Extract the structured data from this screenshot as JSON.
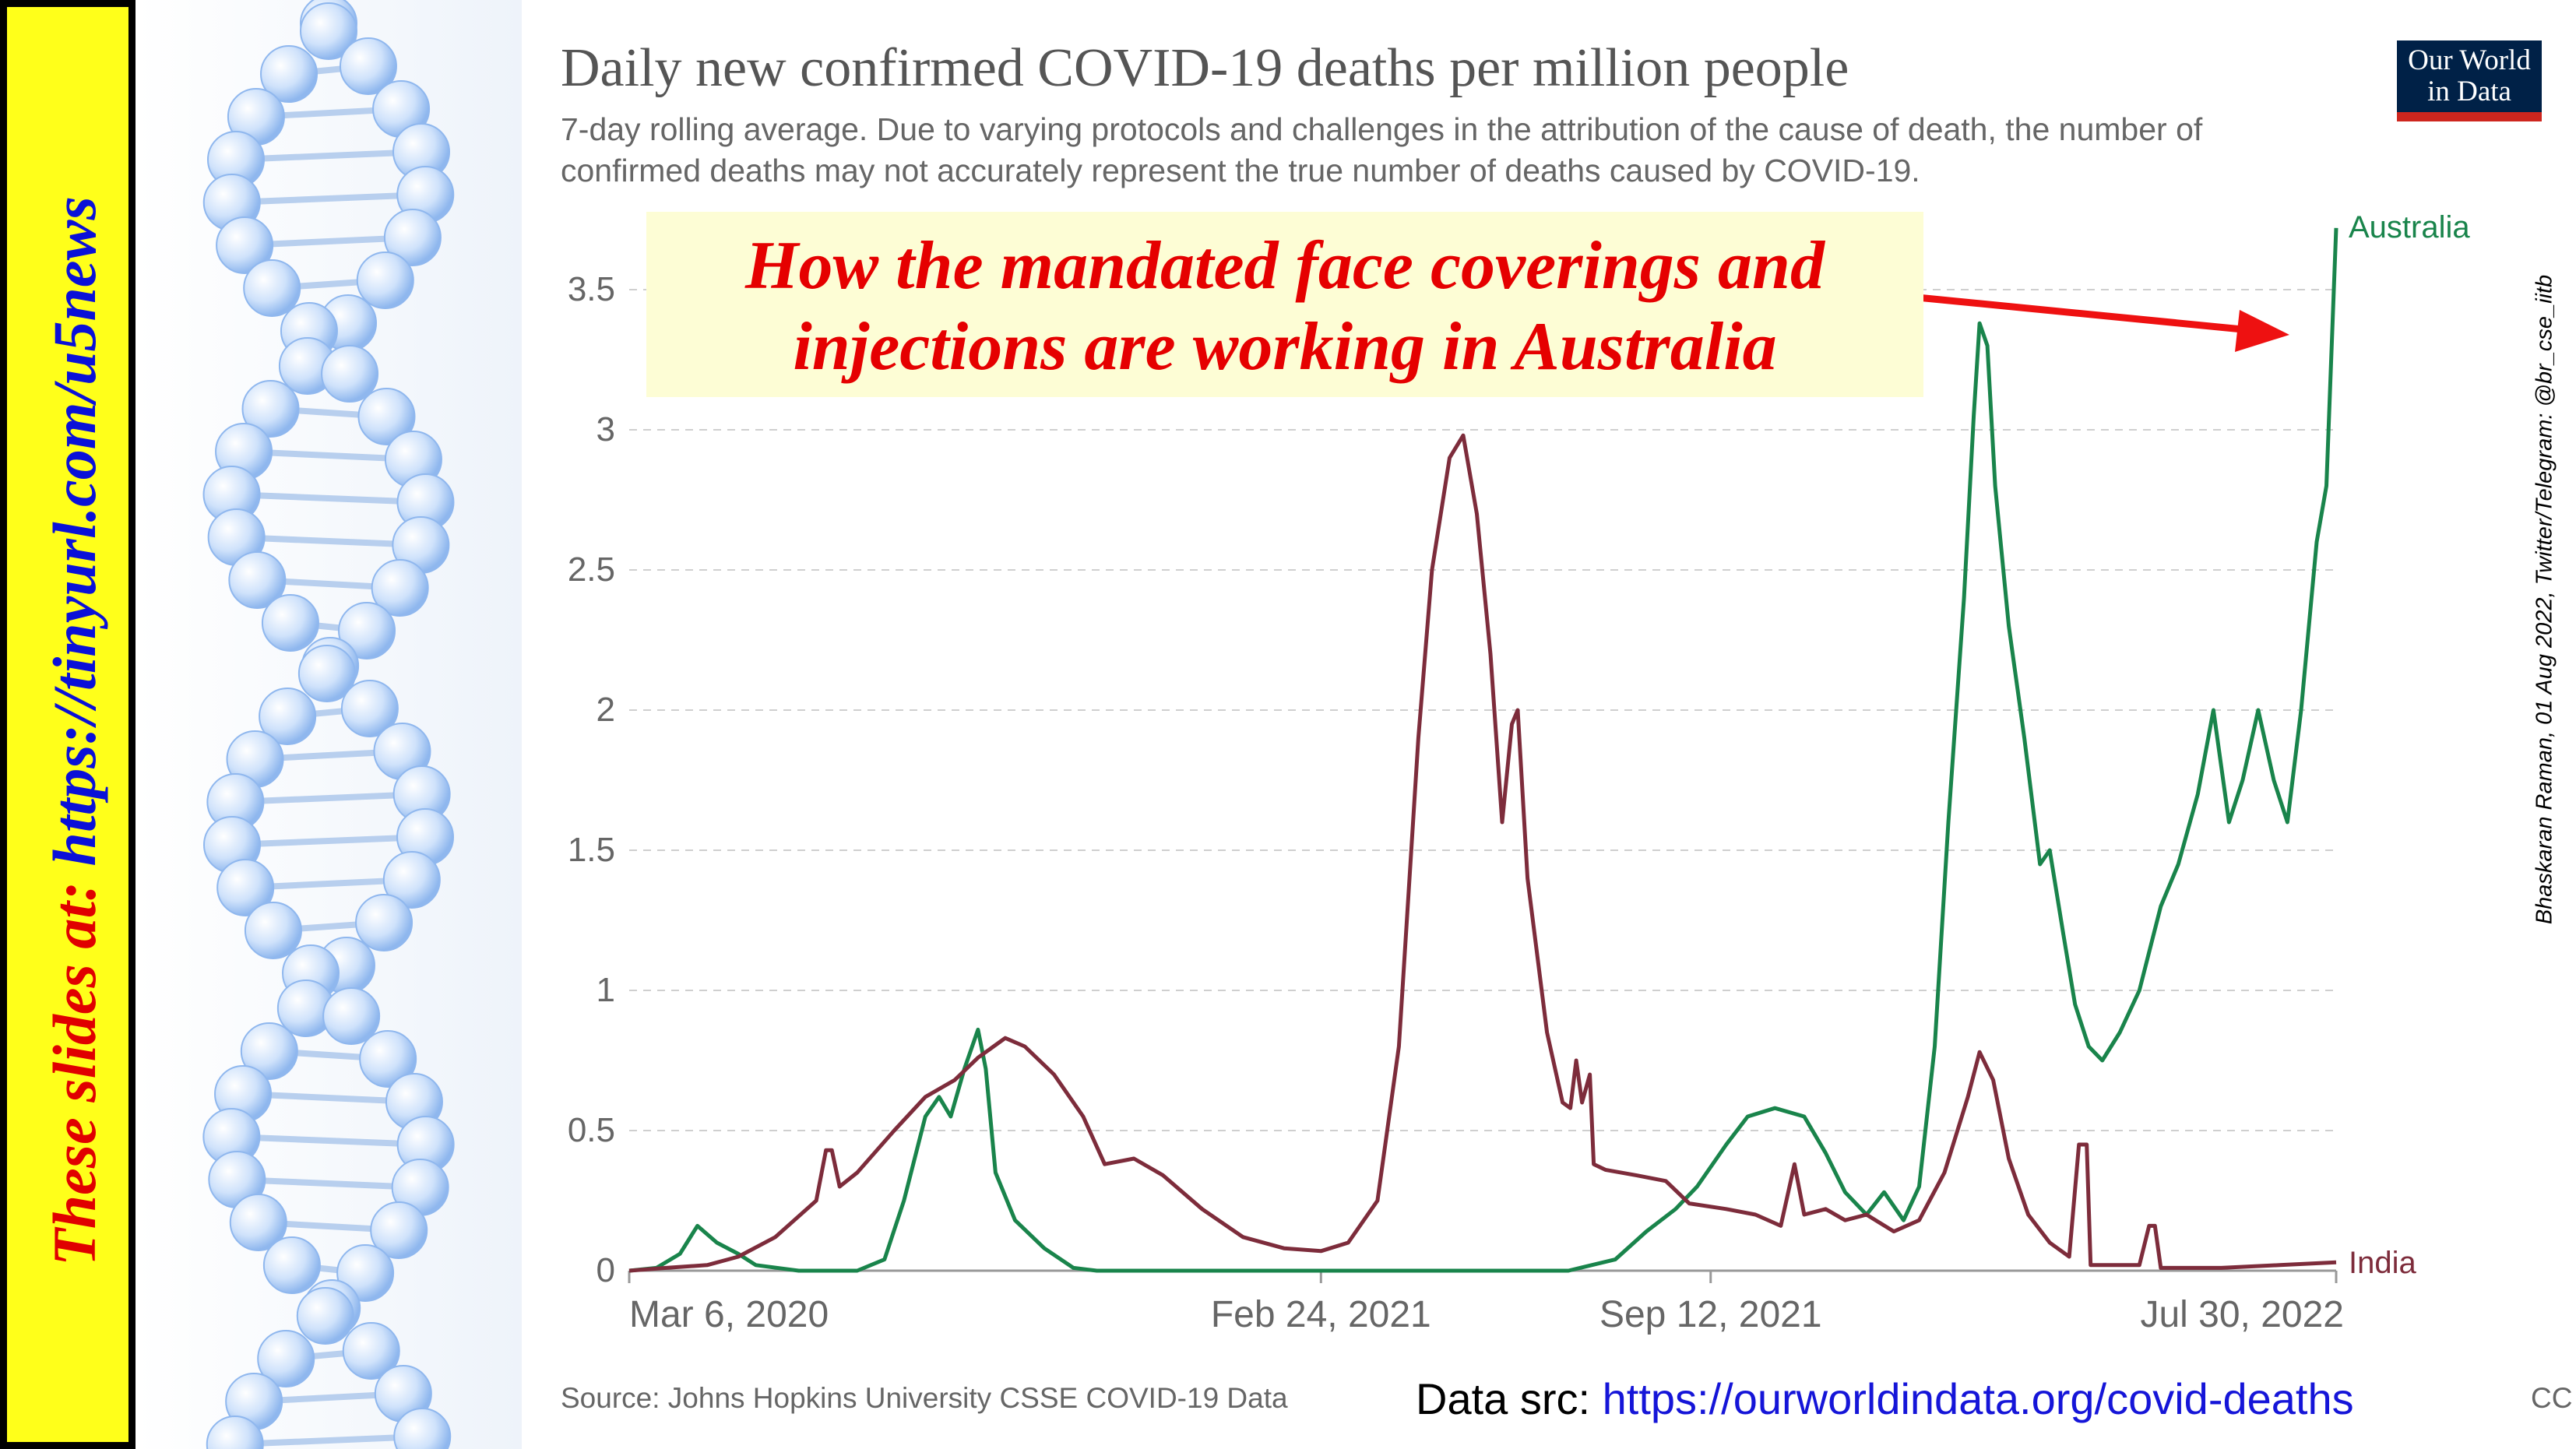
{
  "banner": {
    "prefix": "These slides at: ",
    "url": "https://tinyurl.com/u5news"
  },
  "logo": {
    "line1": "Our World",
    "line2": "in Data"
  },
  "callout": {
    "line1": "How the mandated face coverings and",
    "line2": "injections are working in Australia"
  },
  "side_credit": "Bhaskaran Raman, 01 Aug 2022, Twitter/Telegram: @br_cse_iitb",
  "data_src": {
    "label": "Data src: ",
    "url": "https://ourworldindata.org/covid-deaths"
  },
  "colors": {
    "australia": "#19844b",
    "india": "#7d2c3b",
    "callout_text": "#e50000",
    "banner_bg": "#ffff1a",
    "logo_bg": "#002147",
    "logo_accent": "#ce261e"
  },
  "chart_data": {
    "type": "line",
    "title": "Daily new confirmed COVID-19 deaths per million people",
    "subtitle_line1": "7-day rolling average. Due to varying protocols and challenges in the attribution of the cause of death, the number of",
    "subtitle_line2": "confirmed deaths may not accurately represent the true number of deaths caused by COVID-19.",
    "source": "Source: Johns Hopkins University CSSE COVID-19 Data",
    "license": "CC BY",
    "x_ticks": [
      "Mar 6, 2020",
      "Feb 24, 2021",
      "Sep 12, 2021",
      "Jul 30, 2022"
    ],
    "y_ticks": [
      "0",
      "0.5",
      "1",
      "1.5",
      "2",
      "2.5",
      "3",
      "3.5"
    ],
    "ylim": [
      0,
      3.7
    ],
    "xlim": [
      "2020-03-06",
      "2022-07-30"
    ],
    "grid": "horizontal dashed",
    "series": [
      {
        "name": "Australia",
        "color": "#19844b",
        "points": [
          [
            "2020-03-06",
            0
          ],
          [
            "2020-03-20",
            0.01
          ],
          [
            "2020-04-01",
            0.06
          ],
          [
            "2020-04-10",
            0.16
          ],
          [
            "2020-04-20",
            0.1
          ],
          [
            "2020-05-01",
            0.06
          ],
          [
            "2020-05-10",
            0.02
          ],
          [
            "2020-06-01",
            0
          ],
          [
            "2020-07-01",
            0
          ],
          [
            "2020-07-15",
            0.04
          ],
          [
            "2020-07-25",
            0.25
          ],
          [
            "2020-08-05",
            0.55
          ],
          [
            "2020-08-12",
            0.62
          ],
          [
            "2020-08-18",
            0.55
          ],
          [
            "2020-08-25",
            0.72
          ],
          [
            "2020-09-01",
            0.86
          ],
          [
            "2020-09-05",
            0.72
          ],
          [
            "2020-09-10",
            0.35
          ],
          [
            "2020-09-20",
            0.18
          ],
          [
            "2020-10-05",
            0.08
          ],
          [
            "2020-10-20",
            0.01
          ],
          [
            "2020-11-01",
            0
          ],
          [
            "2021-01-01",
            0
          ],
          [
            "2021-05-01",
            0
          ],
          [
            "2021-07-01",
            0
          ],
          [
            "2021-07-25",
            0.04
          ],
          [
            "2021-08-10",
            0.14
          ],
          [
            "2021-08-25",
            0.22
          ],
          [
            "2021-09-05",
            0.3
          ],
          [
            "2021-09-20",
            0.45
          ],
          [
            "2021-10-01",
            0.55
          ],
          [
            "2021-10-15",
            0.58
          ],
          [
            "2021-10-30",
            0.55
          ],
          [
            "2021-11-10",
            0.42
          ],
          [
            "2021-11-20",
            0.28
          ],
          [
            "2021-12-01",
            0.2
          ],
          [
            "2021-12-10",
            0.28
          ],
          [
            "2021-12-20",
            0.18
          ],
          [
            "2021-12-28",
            0.3
          ],
          [
            "2022-01-05",
            0.8
          ],
          [
            "2022-01-12",
            1.6
          ],
          [
            "2022-01-20",
            2.4
          ],
          [
            "2022-01-25",
            3.05
          ],
          [
            "2022-01-28",
            3.38
          ],
          [
            "2022-02-01",
            3.3
          ],
          [
            "2022-02-05",
            2.8
          ],
          [
            "2022-02-12",
            2.3
          ],
          [
            "2022-02-20",
            1.9
          ],
          [
            "2022-02-28",
            1.45
          ],
          [
            "2022-03-05",
            1.5
          ],
          [
            "2022-03-12",
            1.2
          ],
          [
            "2022-03-18",
            0.95
          ],
          [
            "2022-03-25",
            0.8
          ],
          [
            "2022-04-01",
            0.75
          ],
          [
            "2022-04-10",
            0.85
          ],
          [
            "2022-04-20",
            1.0
          ],
          [
            "2022-05-01",
            1.3
          ],
          [
            "2022-05-10",
            1.45
          ],
          [
            "2022-05-20",
            1.7
          ],
          [
            "2022-05-28",
            2.0
          ],
          [
            "2022-06-05",
            1.6
          ],
          [
            "2022-06-12",
            1.75
          ],
          [
            "2022-06-20",
            2.0
          ],
          [
            "2022-06-28",
            1.75
          ],
          [
            "2022-07-05",
            1.6
          ],
          [
            "2022-07-12",
            2.0
          ],
          [
            "2022-07-20",
            2.6
          ],
          [
            "2022-07-25",
            2.8
          ],
          [
            "2022-07-30",
            3.72
          ]
        ]
      },
      {
        "name": "India",
        "color": "#7d2c3b",
        "points": [
          [
            "2020-03-06",
            0
          ],
          [
            "2020-03-25",
            0.01
          ],
          [
            "2020-04-15",
            0.02
          ],
          [
            "2020-05-01",
            0.05
          ],
          [
            "2020-05-20",
            0.12
          ],
          [
            "2020-06-10",
            0.25
          ],
          [
            "2020-06-15",
            0.43
          ],
          [
            "2020-06-18",
            0.43
          ],
          [
            "2020-06-22",
            0.3
          ],
          [
            "2020-07-01",
            0.35
          ],
          [
            "2020-07-20",
            0.5
          ],
          [
            "2020-08-05",
            0.62
          ],
          [
            "2020-08-20",
            0.68
          ],
          [
            "2020-09-01",
            0.76
          ],
          [
            "2020-09-15",
            0.83
          ],
          [
            "2020-09-25",
            0.8
          ],
          [
            "2020-10-10",
            0.7
          ],
          [
            "2020-10-25",
            0.55
          ],
          [
            "2020-11-05",
            0.38
          ],
          [
            "2020-11-20",
            0.4
          ],
          [
            "2020-12-05",
            0.34
          ],
          [
            "2020-12-25",
            0.22
          ],
          [
            "2021-01-15",
            0.12
          ],
          [
            "2021-02-05",
            0.08
          ],
          [
            "2021-02-24",
            0.07
          ],
          [
            "2021-03-10",
            0.1
          ],
          [
            "2021-03-25",
            0.25
          ],
          [
            "2021-04-05",
            0.8
          ],
          [
            "2021-04-15",
            1.9
          ],
          [
            "2021-04-22",
            2.5
          ],
          [
            "2021-05-01",
            2.9
          ],
          [
            "2021-05-08",
            2.98
          ],
          [
            "2021-05-15",
            2.7
          ],
          [
            "2021-05-22",
            2.2
          ],
          [
            "2021-05-28",
            1.6
          ],
          [
            "2021-06-02",
            1.95
          ],
          [
            "2021-06-05",
            2.0
          ],
          [
            "2021-06-10",
            1.4
          ],
          [
            "2021-06-20",
            0.85
          ],
          [
            "2021-06-28",
            0.6
          ],
          [
            "2021-07-02",
            0.58
          ],
          [
            "2021-07-05",
            0.75
          ],
          [
            "2021-07-08",
            0.6
          ],
          [
            "2021-07-12",
            0.7
          ],
          [
            "2021-07-14",
            0.38
          ],
          [
            "2021-07-20",
            0.36
          ],
          [
            "2021-08-05",
            0.34
          ],
          [
            "2021-08-20",
            0.32
          ],
          [
            "2021-09-01",
            0.24
          ],
          [
            "2021-09-20",
            0.22
          ],
          [
            "2021-10-05",
            0.2
          ],
          [
            "2021-10-18",
            0.16
          ],
          [
            "2021-10-25",
            0.38
          ],
          [
            "2021-10-30",
            0.2
          ],
          [
            "2021-11-10",
            0.22
          ],
          [
            "2021-11-20",
            0.18
          ],
          [
            "2021-12-01",
            0.2
          ],
          [
            "2021-12-15",
            0.14
          ],
          [
            "2021-12-28",
            0.18
          ],
          [
            "2022-01-10",
            0.35
          ],
          [
            "2022-01-22",
            0.62
          ],
          [
            "2022-01-28",
            0.78
          ],
          [
            "2022-02-04",
            0.68
          ],
          [
            "2022-02-12",
            0.4
          ],
          [
            "2022-02-22",
            0.2
          ],
          [
            "2022-03-05",
            0.1
          ],
          [
            "2022-03-15",
            0.05
          ],
          [
            "2022-03-20",
            0.45
          ],
          [
            "2022-03-24",
            0.45
          ],
          [
            "2022-03-26",
            0.02
          ],
          [
            "2022-04-20",
            0.02
          ],
          [
            "2022-04-25",
            0.16
          ],
          [
            "2022-04-28",
            0.16
          ],
          [
            "2022-05-01",
            0.01
          ],
          [
            "2022-06-01",
            0.01
          ],
          [
            "2022-07-01",
            0.02
          ],
          [
            "2022-07-30",
            0.03
          ]
        ]
      }
    ]
  }
}
